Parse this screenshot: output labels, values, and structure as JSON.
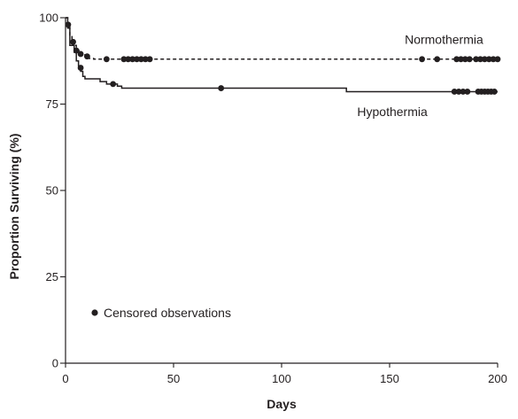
{
  "chart_data": {
    "type": "line",
    "title": "",
    "xlabel": "Days",
    "ylabel": "Proportion Surviving (%)",
    "xlim": [
      0,
      200
    ],
    "ylim": [
      0,
      100
    ],
    "xticks": [
      0,
      50,
      100,
      150,
      200
    ],
    "yticks": [
      0,
      25,
      50,
      75,
      100
    ],
    "grid": false,
    "legend": {
      "label": "Censored observations",
      "marker": "filled-circle"
    },
    "series": [
      {
        "name": "Normothermia",
        "style": "dashed",
        "color": "#231f20",
        "steps": [
          [
            0,
            100
          ],
          [
            1,
            98
          ],
          [
            2,
            95
          ],
          [
            3,
            93
          ],
          [
            4,
            92
          ],
          [
            5,
            90.5
          ],
          [
            7,
            89.5
          ],
          [
            9,
            88.8
          ],
          [
            11,
            88.2
          ],
          [
            13,
            88
          ]
        ],
        "censored": [
          [
            1.2,
            98
          ],
          [
            3.5,
            93
          ],
          [
            5,
            90.5
          ],
          [
            7,
            89.5
          ],
          [
            10,
            88.8
          ],
          [
            19,
            88
          ],
          [
            27,
            88
          ],
          [
            29,
            88
          ],
          [
            31,
            88
          ],
          [
            33,
            88
          ],
          [
            35,
            88
          ],
          [
            37,
            88
          ],
          [
            39,
            88
          ],
          [
            165,
            88
          ],
          [
            172,
            88
          ],
          [
            181,
            88
          ],
          [
            183,
            88
          ],
          [
            185,
            88
          ],
          [
            187,
            88
          ],
          [
            190,
            88
          ],
          [
            192,
            88
          ],
          [
            194,
            88
          ],
          [
            196,
            88
          ],
          [
            198,
            88
          ],
          [
            200,
            88
          ]
        ]
      },
      {
        "name": "Hypothermia",
        "style": "solid",
        "color": "#231f20",
        "steps": [
          [
            0,
            100
          ],
          [
            1,
            97
          ],
          [
            2,
            92
          ],
          [
            4,
            90
          ],
          [
            5,
            87.5
          ],
          [
            6,
            86
          ],
          [
            7,
            84.5
          ],
          [
            8,
            83
          ],
          [
            9,
            82.3
          ],
          [
            16,
            81.5
          ],
          [
            19,
            80.8
          ],
          [
            24,
            80.2
          ],
          [
            26,
            79.6
          ],
          [
            130,
            78.6
          ]
        ],
        "censored": [
          [
            7,
            85.5
          ],
          [
            22,
            80.8
          ],
          [
            72,
            79.6
          ],
          [
            180,
            78.6
          ],
          [
            182,
            78.6
          ],
          [
            184,
            78.6
          ],
          [
            186,
            78.6
          ],
          [
            191,
            78.6
          ],
          [
            192.5,
            78.6
          ],
          [
            194,
            78.6
          ],
          [
            195.5,
            78.6
          ],
          [
            197,
            78.6
          ],
          [
            198.5,
            78.6
          ]
        ]
      }
    ]
  }
}
